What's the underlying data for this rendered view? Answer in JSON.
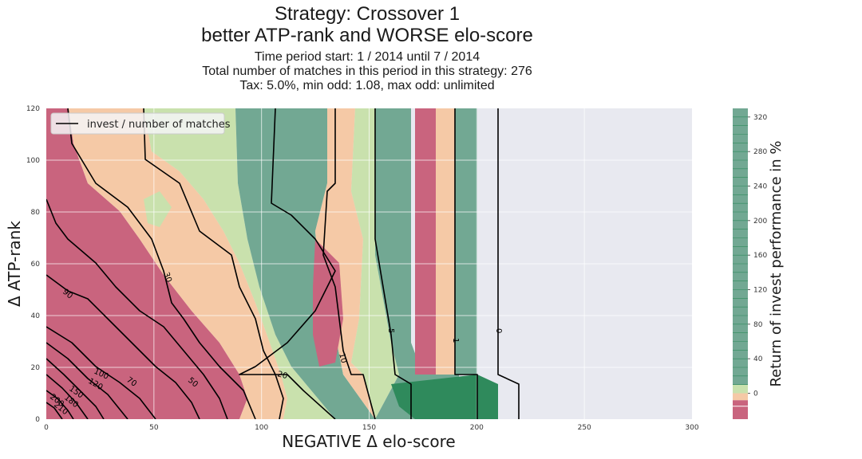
{
  "chart_data": {
    "type": "heatmap",
    "title": "Strategy: Crossover 1",
    "title_line2": "better ATP-rank and WORSE elo-score",
    "subtitle_lines": [
      "Time period start: 1 / 2014 until 7 / 2014",
      "Total number of matches in this period in this strategy: 276",
      "Tax: 5.0%, min odd: 1.08, max odd: unlimited"
    ],
    "xlabel": "NEGATIVE Δ elo-score",
    "ylabel": "Δ ATP-rank",
    "xlim": [
      0,
      300
    ],
    "ylim": [
      0,
      120
    ],
    "x_ticks": [
      0,
      50,
      100,
      150,
      200,
      250,
      300
    ],
    "y_ticks": [
      0,
      20,
      40,
      60,
      80,
      100,
      120
    ],
    "legend": {
      "label": "invest / number of matches",
      "placement": "top-left"
    },
    "colorbar": {
      "label": "Return of invest performance in %",
      "ticks": [
        0,
        40,
        80,
        120,
        160,
        200,
        240,
        280,
        320
      ],
      "range": [
        -30,
        330
      ]
    },
    "colors": {
      "loss": "#c9647e",
      "slight_loss": "#f5c9a6",
      "slight_gain": "#c9e1ad",
      "gain": "#72a893",
      "high_gain": "#2f8a5c",
      "no_data": "#e8e9f0",
      "grid": "#ffffff",
      "contour": "#000000"
    },
    "contour_levels": [
      {
        "label": "0",
        "x": 210
      },
      {
        "label": "1",
        "x": 190
      },
      {
        "label": "5",
        "x": 160
      },
      {
        "label": "10",
        "x": 138
      },
      {
        "label": "20",
        "x": 110
      },
      {
        "label": "30",
        "x": 65
      },
      {
        "label": "50",
        "x": 68
      },
      {
        "label": "70",
        "x": 56
      },
      {
        "label": "90",
        "x": 40
      },
      {
        "label": "100",
        "x": 25
      },
      {
        "label": "120",
        "x": 23
      },
      {
        "label": "150",
        "x": 14
      },
      {
        "label": "180",
        "x": 11
      },
      {
        "label": "200",
        "x": 5
      },
      {
        "label": "210",
        "x": 6
      }
    ],
    "grid": true
  }
}
